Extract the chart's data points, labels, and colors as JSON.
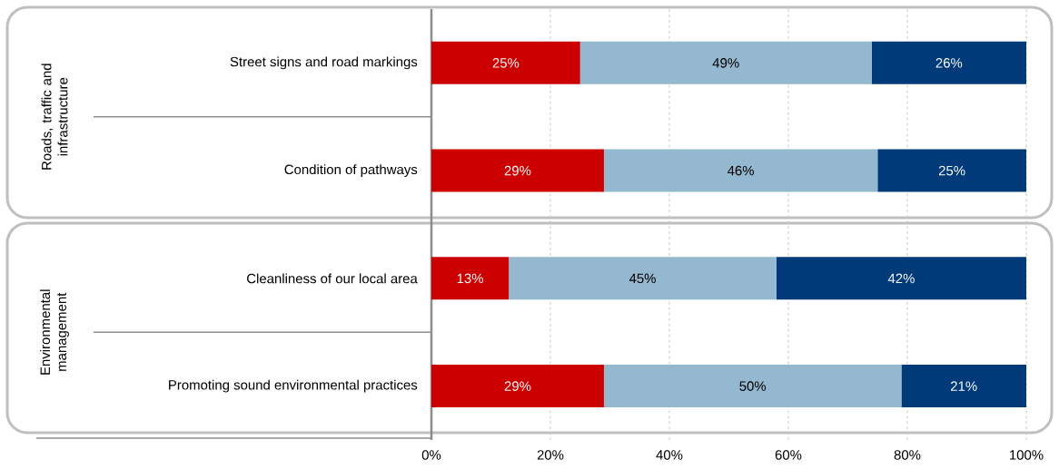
{
  "chart_data": {
    "type": "bar",
    "orientation": "horizontal",
    "stacked": true,
    "grid": "x",
    "categories": [
      "Street signs and road markings",
      "Condition of pathways",
      "Cleanliness of our local area",
      "Promoting sound environmental practices"
    ],
    "series": [
      {
        "color": "#cc0000",
        "values": [
          25,
          29,
          13,
          29
        ],
        "value_labels": [
          "25%",
          "29%",
          "13%",
          "29%"
        ]
      },
      {
        "color": "#93b8d0",
        "values": [
          49,
          46,
          45,
          50
        ],
        "value_labels": [
          "49%",
          "46%",
          "45%",
          "50%"
        ]
      },
      {
        "color": "#003a78",
        "values": [
          26,
          25,
          42,
          21
        ],
        "value_labels": [
          "26%",
          "25%",
          "42%",
          "21%"
        ]
      }
    ],
    "xlim": [
      0,
      100
    ],
    "xticks": [
      {
        "value": 0,
        "label": "0%"
      },
      {
        "value": 20,
        "label": "20%"
      },
      {
        "value": 40,
        "label": "40%"
      },
      {
        "value": 60,
        "label": "60%"
      },
      {
        "value": 80,
        "label": "80%"
      },
      {
        "value": 100,
        "label": "100%"
      }
    ],
    "annotations": [
      "Roads, traffic and infrastructure",
      "Environmental management"
    ]
  }
}
